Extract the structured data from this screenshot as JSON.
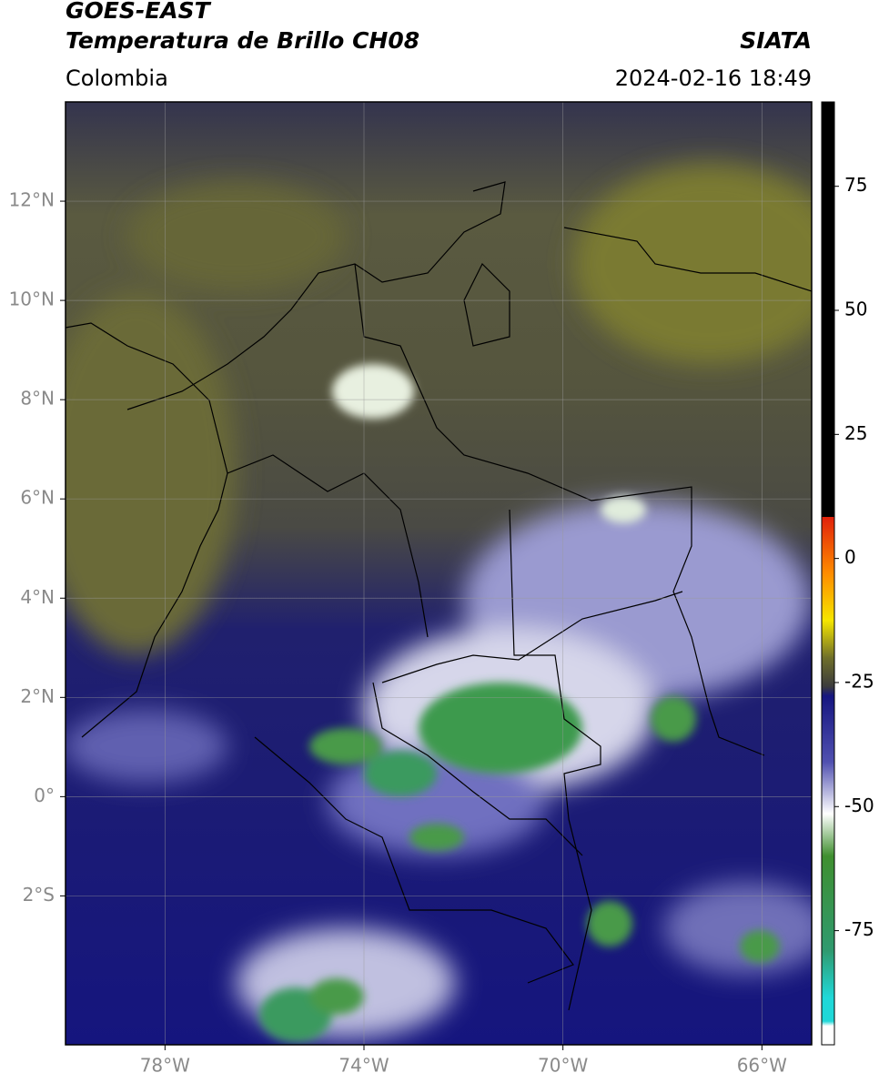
{
  "header": {
    "satellite": "GOES-EAST",
    "product": "Temperatura de Brillo CH08",
    "source": "SIATA",
    "region": "Colombia",
    "datetime": "2024-02-16 18:49"
  },
  "map": {
    "xlim": [
      -80,
      -65
    ],
    "ylim": [
      -5,
      14
    ],
    "xticks": [
      {
        "value": -78,
        "label": "78°W"
      },
      {
        "value": -74,
        "label": "74°W"
      },
      {
        "value": -70,
        "label": "70°W"
      },
      {
        "value": -66,
        "label": "66°W"
      }
    ],
    "yticks": [
      {
        "value": 12,
        "label": "12°N"
      },
      {
        "value": 10,
        "label": "10°N"
      },
      {
        "value": 8,
        "label": "8°N"
      },
      {
        "value": 6,
        "label": "6°N"
      },
      {
        "value": 4,
        "label": "4°N"
      },
      {
        "value": 2,
        "label": "2°N"
      },
      {
        "value": 0,
        "label": "0°"
      },
      {
        "value": -2,
        "label": "2°S"
      }
    ],
    "grid": true
  },
  "colorbar": {
    "lim": [
      -98,
      92
    ],
    "ticks": [
      75,
      50,
      25,
      0,
      -25,
      -50,
      -75
    ]
  }
}
